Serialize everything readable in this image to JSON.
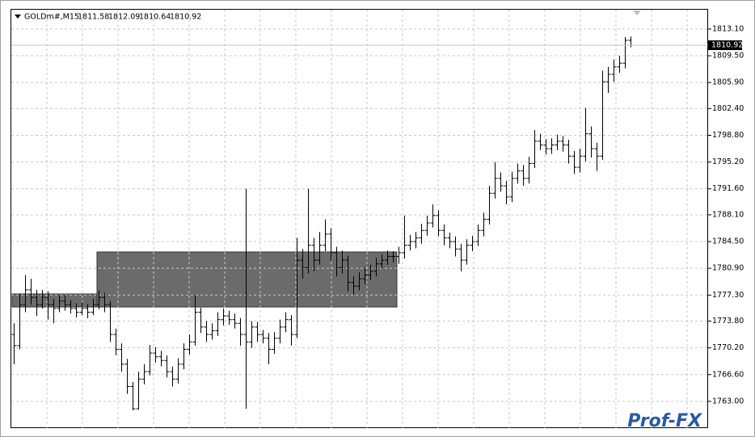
{
  "chart_data": {
    "type": "ohlc",
    "symbol": "GOLDm#,M15",
    "color": "#000000",
    "grid": true,
    "watermark": "Prof-FX",
    "ylim": [
      1759.4,
      1815.7
    ],
    "yticks": [
      {
        "value": 1813.1,
        "label": "1813.10"
      },
      {
        "value": 1809.5,
        "label": "1809.50"
      },
      {
        "value": 1805.9,
        "label": "1805.90"
      },
      {
        "value": 1802.4,
        "label": "1802.40"
      },
      {
        "value": 1798.8,
        "label": "1798.80"
      },
      {
        "value": 1795.2,
        "label": "1795.20"
      },
      {
        "value": 1791.6,
        "label": "1791.60"
      },
      {
        "value": 1788.1,
        "label": "1788.10"
      },
      {
        "value": 1784.5,
        "label": "1784.50"
      },
      {
        "value": 1780.9,
        "label": "1780.90"
      },
      {
        "value": 1777.3,
        "label": "1777.30"
      },
      {
        "value": 1773.8,
        "label": "1773.80"
      },
      {
        "value": 1770.2,
        "label": "1770.20"
      },
      {
        "value": 1766.6,
        "label": "1766.60"
      },
      {
        "value": 1763,
        "label": "1763.00"
      }
    ],
    "zones": [
      {
        "start": 0,
        "end": 15,
        "top": 1777.45,
        "bottom": 1775.7,
        "color": "#6b6b6b"
      },
      {
        "start": 15,
        "end": 68,
        "top": 1783.1,
        "bottom": 1775.7,
        "color": "#6b6b6b"
      }
    ],
    "bars": [
      [
        1772,
        1773.5,
        1768,
        1770.5
      ],
      [
        1770.5,
        1777.5,
        1770,
        1776
      ],
      [
        1776,
        1780,
        1775,
        1778
      ],
      [
        1778,
        1779.5,
        1776,
        1777
      ],
      [
        1777,
        1778,
        1774.5,
        1776
      ],
      [
        1776,
        1778,
        1775.5,
        1777
      ],
      [
        1777,
        1777.8,
        1774,
        1776
      ],
      [
        1776,
        1776.8,
        1773.5,
        1775.5
      ],
      [
        1775.5,
        1777.3,
        1775,
        1776.5
      ],
      [
        1776.5,
        1777.3,
        1775.2,
        1776
      ],
      [
        1776,
        1776.6,
        1774.8,
        1775.5
      ],
      [
        1775.5,
        1776.2,
        1774.3,
        1775
      ],
      [
        1775,
        1776.3,
        1774.6,
        1775.5
      ],
      [
        1775.5,
        1776.1,
        1774.2,
        1775
      ],
      [
        1775,
        1776.8,
        1774.6,
        1776
      ],
      [
        1776,
        1777.9,
        1775.4,
        1777
      ],
      [
        1777,
        1777.6,
        1775,
        1776
      ],
      [
        1776,
        1776.5,
        1771,
        1772
      ],
      [
        1772,
        1772.8,
        1769.2,
        1770
      ],
      [
        1770,
        1770.8,
        1767,
        1768
      ],
      [
        1768,
        1768.7,
        1764,
        1765
      ],
      [
        1765,
        1765.6,
        1761.8,
        1762
      ],
      [
        1762,
        1767,
        1761.9,
        1766
      ],
      [
        1766,
        1768,
        1765.3,
        1767
      ],
      [
        1767,
        1770.6,
        1766.5,
        1769.5
      ],
      [
        1769.5,
        1770.3,
        1768.2,
        1769
      ],
      [
        1769,
        1769.8,
        1767.7,
        1768.5
      ],
      [
        1768.5,
        1769.2,
        1766.2,
        1767
      ],
      [
        1767,
        1767.7,
        1765,
        1766
      ],
      [
        1766,
        1768.8,
        1765.4,
        1768
      ],
      [
        1768,
        1770.8,
        1767.3,
        1770
      ],
      [
        1770,
        1772,
        1769.3,
        1771
      ],
      [
        1771,
        1777.3,
        1770.5,
        1775
      ],
      [
        1775,
        1775.6,
        1772.2,
        1773
      ],
      [
        1773,
        1773.8,
        1771,
        1772
      ],
      [
        1772,
        1773.5,
        1771.3,
        1772.5
      ],
      [
        1772.5,
        1775,
        1771.8,
        1774
      ],
      [
        1774,
        1775.5,
        1773.2,
        1774.5
      ],
      [
        1774.5,
        1775.2,
        1773.3,
        1774
      ],
      [
        1774,
        1774.8,
        1772.8,
        1773.5
      ],
      [
        1773.5,
        1774.2,
        1770.5,
        1772
      ],
      [
        1772,
        1791.6,
        1762,
        1771
      ],
      [
        1771,
        1773.8,
        1770.2,
        1773
      ],
      [
        1773,
        1773.7,
        1771,
        1772
      ],
      [
        1772,
        1772.6,
        1770.8,
        1771.5
      ],
      [
        1771.5,
        1772.2,
        1768,
        1770
      ],
      [
        1770,
        1772.3,
        1769.4,
        1771.5
      ],
      [
        1771.5,
        1774,
        1770.8,
        1773
      ],
      [
        1773,
        1775,
        1772.3,
        1774
      ],
      [
        1774,
        1774.6,
        1770.5,
        1772
      ],
      [
        1772,
        1785,
        1771.5,
        1782
      ],
      [
        1782,
        1783.5,
        1779.5,
        1781
      ],
      [
        1781,
        1791.6,
        1780.2,
        1784
      ],
      [
        1784,
        1785,
        1780.5,
        1782
      ],
      [
        1782,
        1785.8,
        1781.4,
        1784
      ],
      [
        1784,
        1787.5,
        1783.2,
        1785.5
      ],
      [
        1785.5,
        1786.3,
        1782,
        1783
      ],
      [
        1783,
        1783.8,
        1779.8,
        1781
      ],
      [
        1781,
        1783.3,
        1780.2,
        1782
      ],
      [
        1782,
        1782.6,
        1777.8,
        1779
      ],
      [
        1779,
        1779.8,
        1777.4,
        1778.5
      ],
      [
        1778.5,
        1780.4,
        1777.9,
        1779.5
      ],
      [
        1779.5,
        1781,
        1778.8,
        1780
      ],
      [
        1780,
        1781.4,
        1779.3,
        1780.5
      ],
      [
        1780.5,
        1782.3,
        1779.8,
        1781.5
      ],
      [
        1781.5,
        1782.8,
        1780.9,
        1782
      ],
      [
        1782,
        1783.3,
        1781.4,
        1782.5
      ],
      [
        1782.5,
        1783.2,
        1781.7,
        1782.5
      ],
      [
        1782.5,
        1783.8,
        1781.5,
        1783
      ],
      [
        1783,
        1788,
        1782.2,
        1784
      ],
      [
        1784,
        1785.4,
        1783.3,
        1784.5
      ],
      [
        1784.5,
        1785.8,
        1783.6,
        1785
      ],
      [
        1785,
        1786.9,
        1784.2,
        1786
      ],
      [
        1786,
        1788,
        1785.3,
        1787
      ],
      [
        1787,
        1789.5,
        1786.4,
        1788
      ],
      [
        1788,
        1788.7,
        1785.2,
        1786
      ],
      [
        1786,
        1786.8,
        1784,
        1785
      ],
      [
        1785,
        1785.7,
        1783.6,
        1784.5
      ],
      [
        1784.5,
        1785.2,
        1782.5,
        1783.5
      ],
      [
        1783.5,
        1784.2,
        1780.5,
        1782
      ],
      [
        1782,
        1784.8,
        1781.4,
        1784
      ],
      [
        1784,
        1785.3,
        1783.2,
        1784.5
      ],
      [
        1784.5,
        1786.8,
        1783.9,
        1786
      ],
      [
        1786,
        1788.4,
        1785.2,
        1787.5
      ],
      [
        1787.5,
        1792,
        1786.8,
        1791
      ],
      [
        1791,
        1795.2,
        1790.3,
        1793
      ],
      [
        1793,
        1793.8,
        1791.2,
        1792
      ],
      [
        1792,
        1792.7,
        1789.5,
        1790.5
      ],
      [
        1790.5,
        1793.9,
        1789.8,
        1793
      ],
      [
        1793,
        1795,
        1792.3,
        1794
      ],
      [
        1794,
        1794.8,
        1792,
        1793
      ],
      [
        1793,
        1795.9,
        1792.3,
        1795
      ],
      [
        1795,
        1799.5,
        1794.4,
        1798
      ],
      [
        1798,
        1799,
        1796.8,
        1797.5
      ],
      [
        1797.5,
        1798.3,
        1796.2,
        1797
      ],
      [
        1797,
        1798.4,
        1796.3,
        1797.5
      ],
      [
        1797.5,
        1798.9,
        1796.8,
        1798
      ],
      [
        1798,
        1798.7,
        1796.6,
        1797.5
      ],
      [
        1797.5,
        1798.2,
        1795,
        1796
      ],
      [
        1796,
        1796.7,
        1793.6,
        1794.5
      ],
      [
        1794.5,
        1797,
        1793.8,
        1796
      ],
      [
        1796,
        1802.5,
        1795.3,
        1799
      ],
      [
        1799,
        1800,
        1795.8,
        1797
      ],
      [
        1797,
        1797.8,
        1794,
        1796
      ],
      [
        1796,
        1807.5,
        1795.5,
        1806
      ],
      [
        1806,
        1808,
        1804.5,
        1807
      ],
      [
        1807,
        1809,
        1806,
        1808
      ],
      [
        1808,
        1809.5,
        1807.2,
        1808.5
      ],
      [
        1808.5,
        1812,
        1807.8,
        1811.58
      ],
      [
        1811.58,
        1812.09,
        1810.64,
        1810.92
      ]
    ]
  }
}
